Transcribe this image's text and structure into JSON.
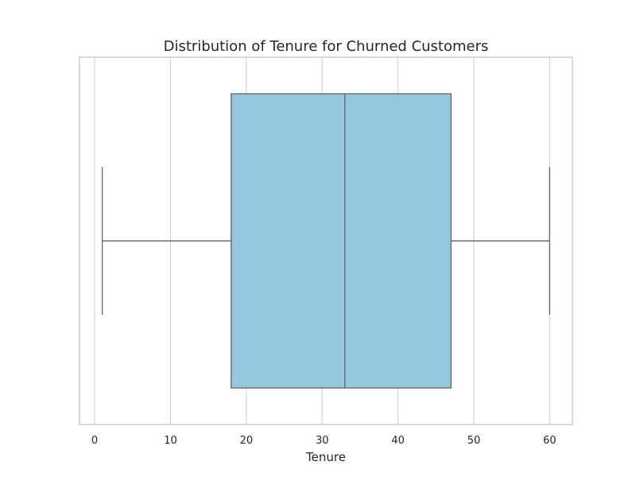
{
  "chart_data": {
    "type": "boxplot",
    "title": "Distribution of Tenure for Churned Customers",
    "xlabel": "Tenure",
    "ylabel": "",
    "xlim": [
      -2,
      63
    ],
    "xticks": [
      0,
      10,
      20,
      30,
      40,
      50,
      60
    ],
    "grid": "vertical",
    "orientation": "horizontal",
    "box": {
      "whisker_low": 1,
      "q1": 18,
      "median": 33,
      "q3": 47,
      "whisker_high": 60
    },
    "colors": {
      "box_fill": "#95c8de",
      "box_edge": "#6b6b6b",
      "grid": "#d3d3d3",
      "frame": "#cccccc"
    }
  }
}
